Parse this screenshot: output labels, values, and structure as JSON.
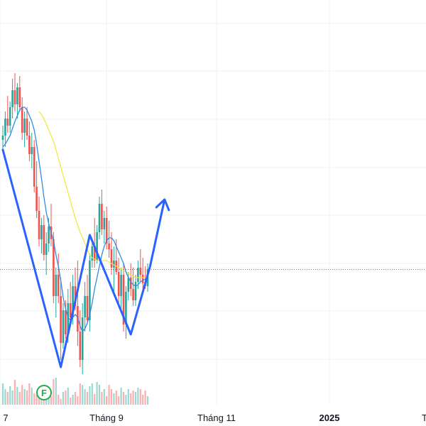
{
  "chart_data": {
    "type": "candlestick",
    "colors": {
      "up": "#26a69a",
      "down": "#ef5350",
      "ma_fast": "#2e8ce6",
      "ma_slow": "#f5e642",
      "pattern": "#2962ff",
      "price_line": "#26a69a",
      "event_marker": "#22ab4a",
      "grid": "#eef0f3"
    },
    "x_axis": {
      "ticks": [
        {
          "label": "7",
          "bold": false
        },
        {
          "label": "Tháng 9",
          "bold": false
        },
        {
          "label": "Tháng 11",
          "bold": false
        },
        {
          "label": "2025",
          "bold": true
        },
        {
          "label": "T",
          "bold": false
        }
      ]
    },
    "event_marker": {
      "label": "F"
    },
    "candles": [
      {
        "o": 155,
        "h": 165,
        "l": 148,
        "c": 158
      },
      {
        "o": 158,
        "h": 175,
        "l": 150,
        "c": 170
      },
      {
        "o": 170,
        "h": 186,
        "l": 160,
        "c": 165
      },
      {
        "o": 165,
        "h": 182,
        "l": 160,
        "c": 178
      },
      {
        "o": 178,
        "h": 198,
        "l": 170,
        "c": 190
      },
      {
        "o": 190,
        "h": 202,
        "l": 175,
        "c": 180
      },
      {
        "o": 180,
        "h": 195,
        "l": 170,
        "c": 192
      },
      {
        "o": 192,
        "h": 200,
        "l": 175,
        "c": 178
      },
      {
        "o": 178,
        "h": 185,
        "l": 155,
        "c": 160
      },
      {
        "o": 160,
        "h": 175,
        "l": 150,
        "c": 170
      },
      {
        "o": 170,
        "h": 178,
        "l": 155,
        "c": 158
      },
      {
        "o": 158,
        "h": 168,
        "l": 140,
        "c": 145
      },
      {
        "o": 145,
        "h": 160,
        "l": 135,
        "c": 150
      },
      {
        "o": 150,
        "h": 155,
        "l": 118,
        "c": 122
      },
      {
        "o": 122,
        "h": 140,
        "l": 100,
        "c": 105
      },
      {
        "o": 105,
        "h": 115,
        "l": 80,
        "c": 85
      },
      {
        "o": 85,
        "h": 100,
        "l": 75,
        "c": 95
      },
      {
        "o": 95,
        "h": 102,
        "l": 70,
        "c": 74
      },
      {
        "o": 74,
        "h": 90,
        "l": 60,
        "c": 82
      },
      {
        "o": 82,
        "h": 100,
        "l": 76,
        "c": 94
      },
      {
        "o": 94,
        "h": 110,
        "l": 80,
        "c": 85
      },
      {
        "o": 85,
        "h": 90,
        "l": 40,
        "c": 45
      },
      {
        "o": 45,
        "h": 65,
        "l": 30,
        "c": 60
      },
      {
        "o": 60,
        "h": 75,
        "l": 40,
        "c": 45
      },
      {
        "o": 45,
        "h": 58,
        "l": 0,
        "c": 12
      },
      {
        "o": 12,
        "h": 40,
        "l": 8,
        "c": 35
      },
      {
        "o": 35,
        "h": 42,
        "l": 15,
        "c": 18
      },
      {
        "o": 18,
        "h": 50,
        "l": 12,
        "c": 40
      },
      {
        "o": 40,
        "h": 55,
        "l": 28,
        "c": 30
      },
      {
        "o": 30,
        "h": 60,
        "l": 25,
        "c": 52
      },
      {
        "o": 52,
        "h": 65,
        "l": 35,
        "c": 38
      },
      {
        "o": 38,
        "h": 70,
        "l": 10,
        "c": 20
      },
      {
        "o": 20,
        "h": 35,
        "l": -5,
        "c": 0
      },
      {
        "o": 0,
        "h": 40,
        "l": -10,
        "c": 30
      },
      {
        "o": 30,
        "h": 55,
        "l": 20,
        "c": 45
      },
      {
        "o": 45,
        "h": 60,
        "l": 25,
        "c": 28
      },
      {
        "o": 28,
        "h": 75,
        "l": 20,
        "c": 70
      },
      {
        "o": 70,
        "h": 85,
        "l": 65,
        "c": 80
      },
      {
        "o": 80,
        "h": 100,
        "l": 65,
        "c": 70
      },
      {
        "o": 70,
        "h": 95,
        "l": 68,
        "c": 90
      },
      {
        "o": 90,
        "h": 115,
        "l": 85,
        "c": 110
      },
      {
        "o": 110,
        "h": 120,
        "l": 88,
        "c": 92
      },
      {
        "o": 92,
        "h": 105,
        "l": 82,
        "c": 100
      },
      {
        "o": 100,
        "h": 108,
        "l": 78,
        "c": 82
      },
      {
        "o": 82,
        "h": 98,
        "l": 72,
        "c": 78
      },
      {
        "o": 78,
        "h": 90,
        "l": 60,
        "c": 65
      },
      {
        "o": 65,
        "h": 80,
        "l": 45,
        "c": 70
      },
      {
        "o": 70,
        "h": 85,
        "l": 60,
        "c": 62
      },
      {
        "o": 62,
        "h": 72,
        "l": 40,
        "c": 45
      },
      {
        "o": 45,
        "h": 65,
        "l": 35,
        "c": 60
      },
      {
        "o": 60,
        "h": 68,
        "l": 20,
        "c": 25
      },
      {
        "o": 25,
        "h": 52,
        "l": 15,
        "c": 48
      },
      {
        "o": 48,
        "h": 62,
        "l": 42,
        "c": 58
      },
      {
        "o": 58,
        "h": 68,
        "l": 45,
        "c": 50
      },
      {
        "o": 50,
        "h": 65,
        "l": 38,
        "c": 42
      },
      {
        "o": 42,
        "h": 60,
        "l": 38,
        "c": 55
      },
      {
        "o": 55,
        "h": 70,
        "l": 50,
        "c": 65
      },
      {
        "o": 65,
        "h": 78,
        "l": 55,
        "c": 60
      },
      {
        "o": 60,
        "h": 72,
        "l": 50,
        "c": 54
      },
      {
        "o": 54,
        "h": 66,
        "l": 50,
        "c": 52
      },
      {
        "o": 52,
        "h": 68,
        "l": 48,
        "c": 64
      }
    ],
    "volume": [
      30,
      22,
      18,
      26,
      20,
      35,
      25,
      18,
      28,
      22,
      20,
      30,
      24,
      16,
      14,
      22,
      10,
      24,
      18,
      14,
      12,
      36,
      38,
      14,
      8,
      18,
      20,
      24,
      10,
      14,
      18,
      12,
      30,
      28,
      22,
      18,
      26,
      30,
      15,
      32,
      28,
      18,
      22,
      12,
      28,
      22,
      16,
      20,
      12,
      24,
      18,
      14,
      22,
      16,
      20,
      18,
      24,
      22,
      14,
      20,
      12
    ],
    "volume_up": [
      true,
      true,
      false,
      true,
      true,
      false,
      true,
      false,
      false,
      true,
      false,
      false,
      true,
      false,
      false,
      false,
      true,
      false,
      true,
      true,
      false,
      false,
      true,
      false,
      false,
      true,
      false,
      true,
      false,
      true,
      false,
      false,
      false,
      true,
      true,
      false,
      true,
      true,
      false,
      true,
      true,
      false,
      true,
      false,
      false,
      false,
      true,
      false,
      false,
      true,
      false,
      true,
      true,
      false,
      false,
      true,
      true,
      false,
      false,
      false,
      true
    ],
    "ma_fast": [
      150,
      152,
      155,
      158,
      163,
      168,
      172,
      176,
      178,
      178,
      176,
      172,
      168,
      162,
      152,
      140,
      128,
      115,
      104,
      96,
      90,
      84,
      74,
      66,
      56,
      44,
      36,
      30,
      28,
      30,
      32,
      30,
      24,
      20,
      22,
      26,
      32,
      40,
      50,
      58,
      66,
      74,
      80,
      84,
      86,
      86,
      84,
      80,
      76,
      72,
      68,
      62,
      58,
      55,
      53,
      52,
      53,
      55,
      56,
      57,
      58
    ],
    "ma_slow": [
      null,
      null,
      null,
      null,
      null,
      null,
      null,
      null,
      null,
      null,
      null,
      null,
      null,
      null,
      null,
      175,
      173,
      170,
      166,
      162,
      158,
      154,
      148,
      142,
      136,
      130,
      124,
      118,
      112,
      106,
      100,
      95,
      90,
      86,
      82,
      78,
      74,
      72,
      71,
      70,
      70,
      70,
      70,
      70,
      69,
      68,
      67,
      66,
      65,
      64,
      63,
      62,
      61,
      60,
      59,
      58,
      58,
      58,
      58,
      58,
      58
    ],
    "pattern": [
      {
        "i": 0,
        "v": 148
      },
      {
        "i": 24,
        "v": -5
      },
      {
        "i": 36,
        "v": 88
      },
      {
        "i": 53,
        "v": 18
      },
      {
        "i": 61,
        "v": 66
      },
      {
        "i": 67,
        "v": 113
      }
    ],
    "last_price": 64
  }
}
